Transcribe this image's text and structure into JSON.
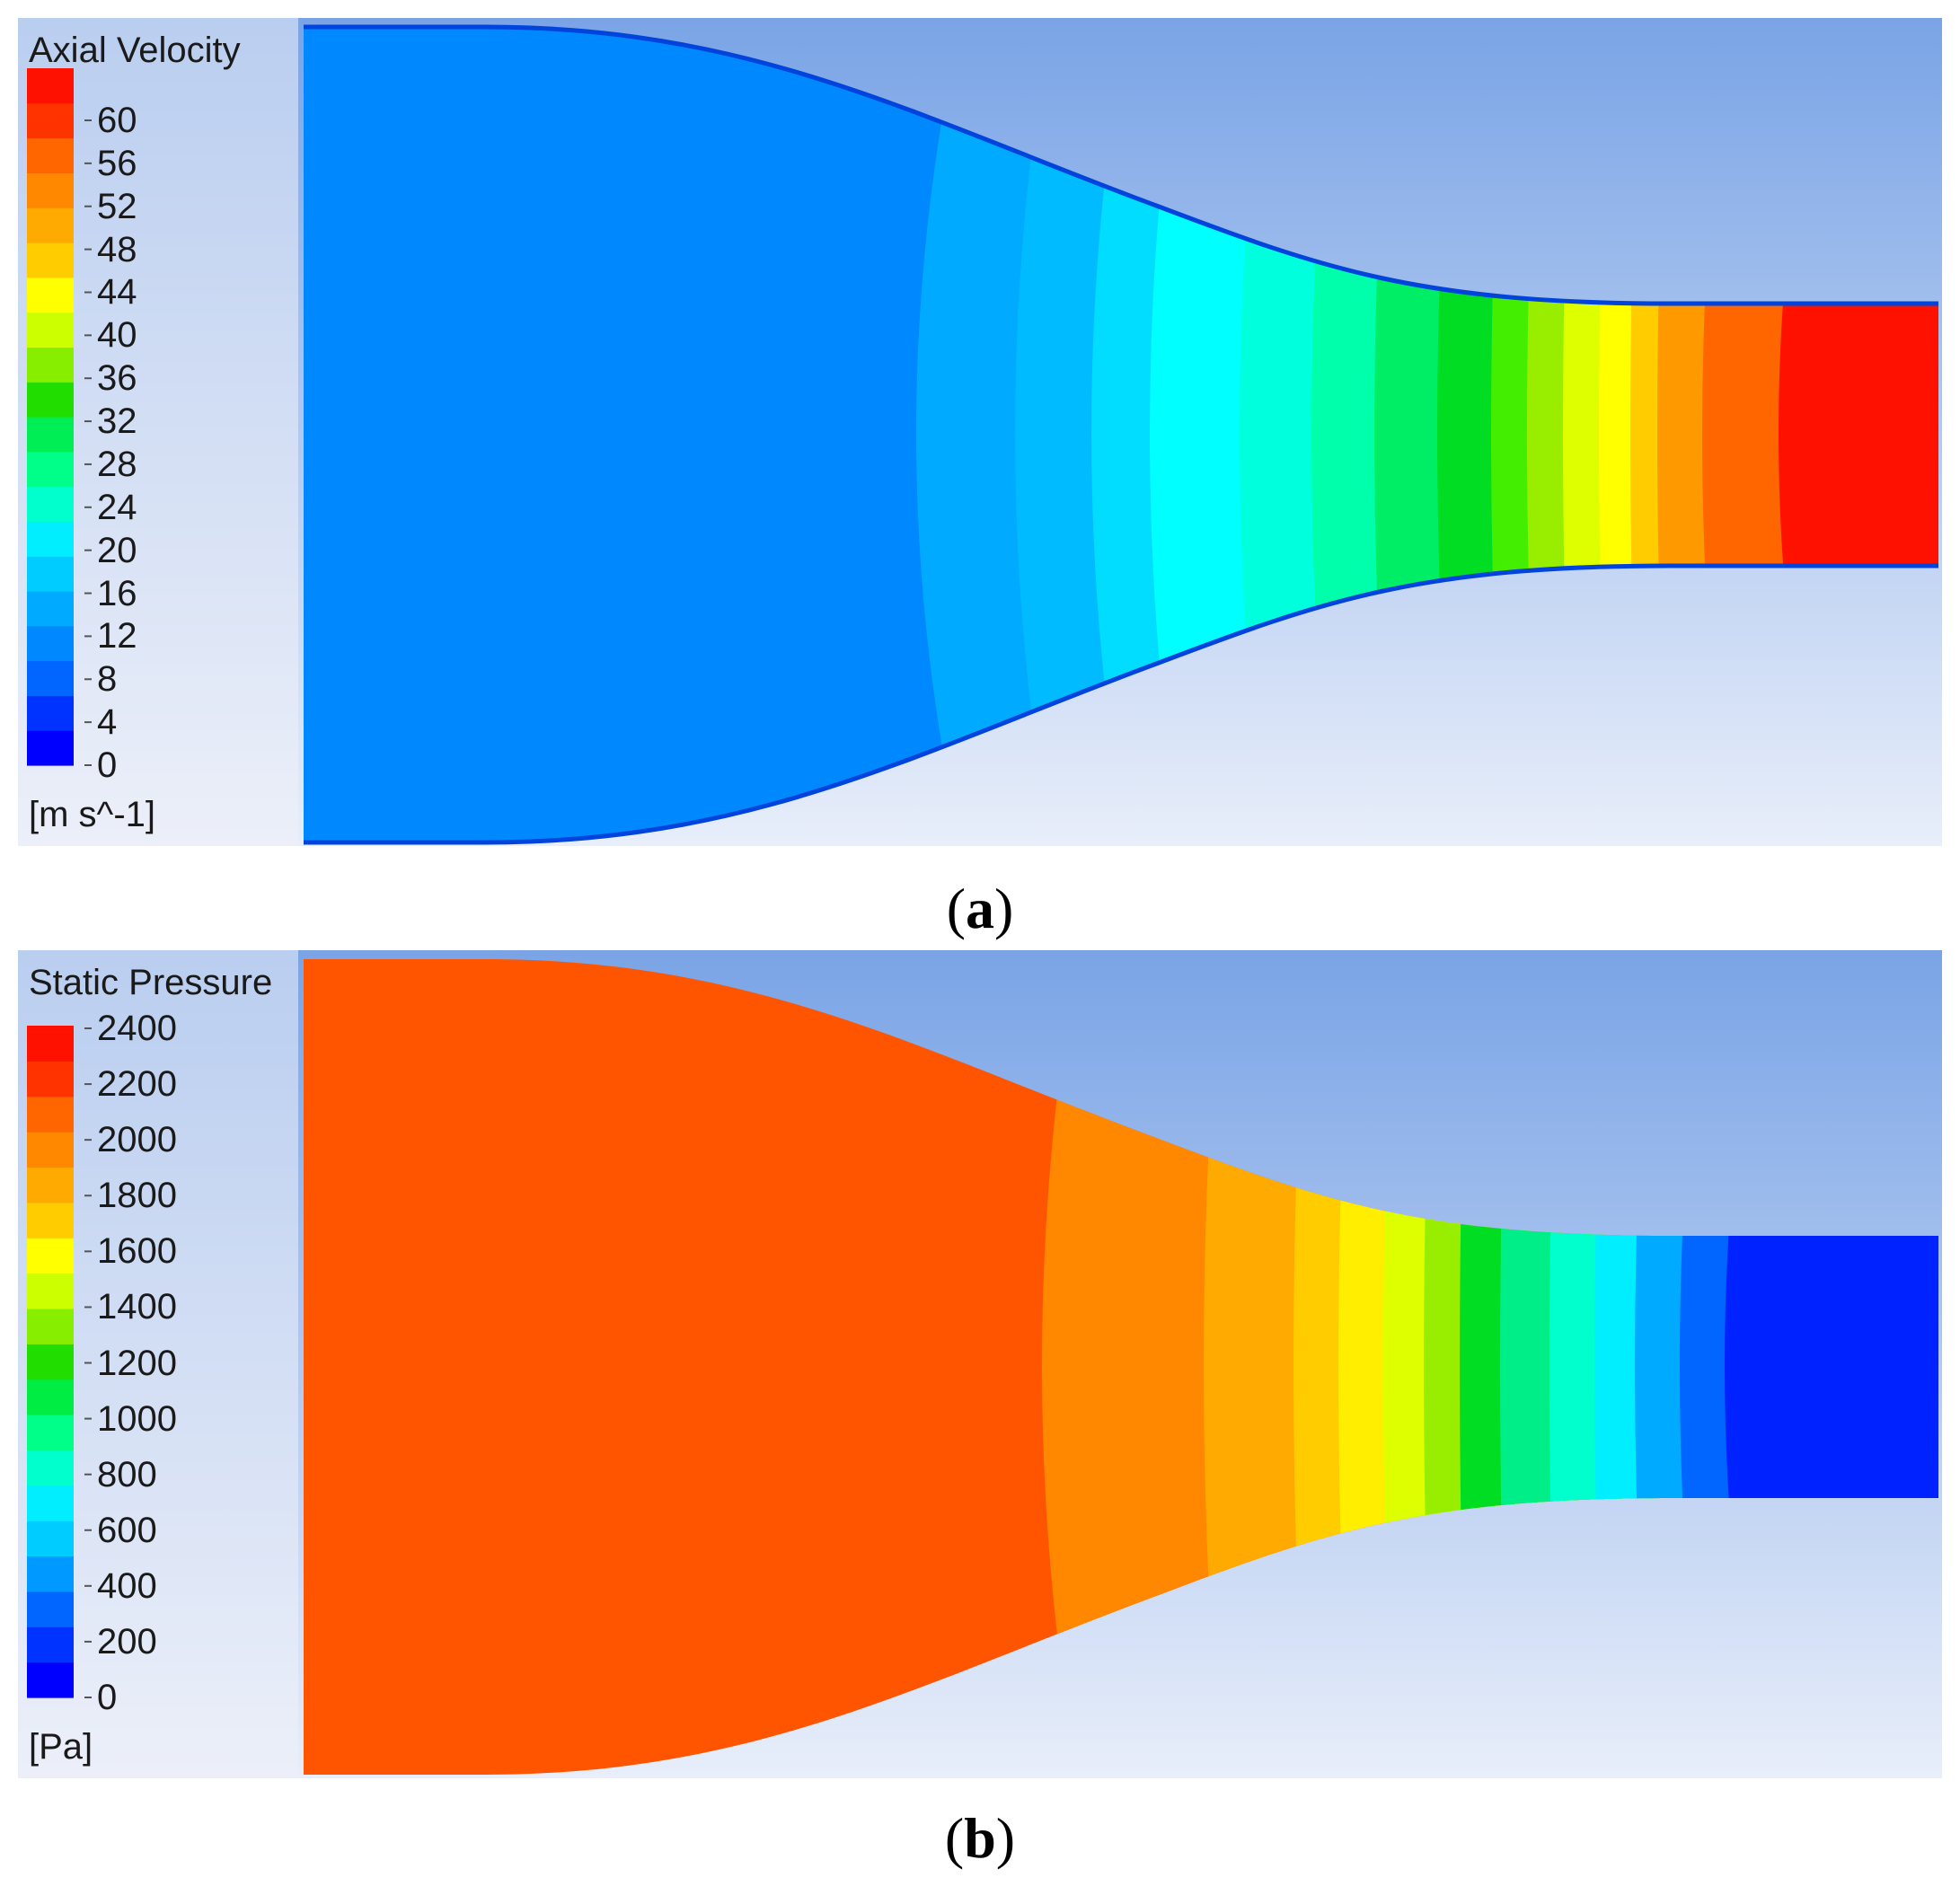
{
  "panels": [
    {
      "id": "a",
      "legend_title": "Axial Velocity",
      "units": "[m s^-1]",
      "tick_labels": [
        "60",
        "56",
        "52",
        "48",
        "44",
        "40",
        "36",
        "32",
        "28",
        "24",
        "20",
        "16",
        "12",
        "8",
        "4",
        "0"
      ],
      "caption_letter": "a",
      "field": "velocity",
      "palette": [
        "#0000ff",
        "#0033ff",
        "#0066ff",
        "#0088ff",
        "#00aaff",
        "#00ccff",
        "#00eeff",
        "#00ffcc",
        "#00ff88",
        "#00ee55",
        "#22dd00",
        "#88ee00",
        "#ccff00",
        "#ffff00",
        "#ffcc00",
        "#ffaa00",
        "#ff8800",
        "#ff6600",
        "#ff3300",
        "#ff1100"
      ]
    },
    {
      "id": "b",
      "legend_title": "Static Pressure",
      "units": "[Pa]",
      "tick_labels": [
        "2400",
        "2200",
        "2000",
        "1800",
        "1600",
        "1400",
        "1200",
        "1000",
        "800",
        "600",
        "400",
        "200",
        "0"
      ],
      "caption_letter": "b",
      "field": "pressure",
      "palette": [
        "#0000ff",
        "#0033ff",
        "#0066ff",
        "#0099ff",
        "#00ccff",
        "#00eeff",
        "#00ffcc",
        "#00ff88",
        "#00ee44",
        "#22dd00",
        "#88ee00",
        "#ccff00",
        "#ffff00",
        "#ffcc00",
        "#ffaa00",
        "#ff8800",
        "#ff6600",
        "#ff3300",
        "#ff1100"
      ]
    }
  ]
}
